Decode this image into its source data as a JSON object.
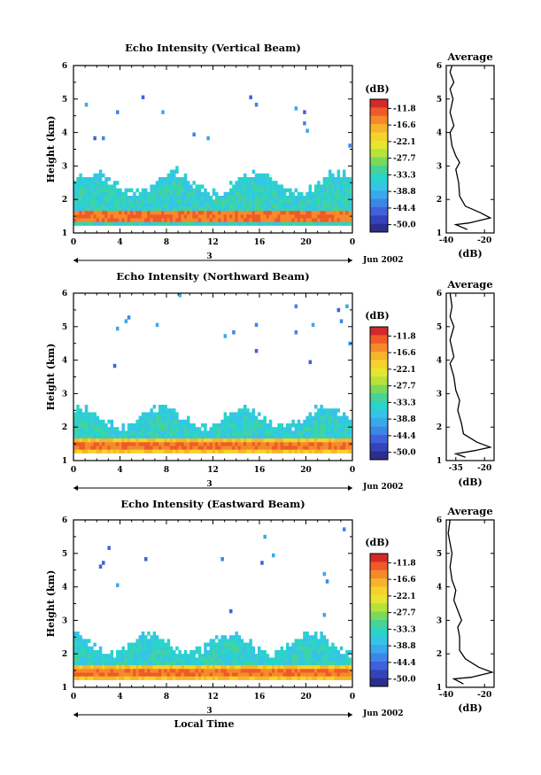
{
  "figure": {
    "date_label": "Jun 2002",
    "xlabel": "Local Time",
    "day_label": "3",
    "average_xlabel": "(dB)",
    "colorbar_label": "(dB)",
    "colorbar_ticks": [
      "-11.8",
      "-16.6",
      "-22.1",
      "-27.7",
      "-33.3",
      "-38.8",
      "-44.4",
      "-50.0"
    ],
    "colors": [
      "#d22a2a",
      "#ef5a28",
      "#f48a2a",
      "#f6b42c",
      "#f5d32c",
      "#e6e630",
      "#b6e23a",
      "#7ad95a",
      "#45d39a",
      "#2ad4c8",
      "#35c4e8",
      "#3aa9ec",
      "#3e86e6",
      "#3f62db",
      "#3444b8",
      "#2b2e8e"
    ]
  },
  "chart_data": [
    {
      "type": "heatmap",
      "title": "Echo Intensity (Vertical Beam)",
      "xlabel": "",
      "ylabel": "Height (km)",
      "xlim": [
        0,
        24
      ],
      "ylim": [
        1,
        6
      ],
      "x_ticks": [
        "0",
        "4",
        "8",
        "12",
        "16",
        "20",
        "0"
      ],
      "y_ticks": [
        "1",
        "2",
        "3",
        "4",
        "5",
        "6"
      ],
      "colorbar_range_db": [
        -50.0,
        -11.8
      ],
      "features": {
        "strong_layer_height_km": 1.5,
        "echo_top_height_km": [
          2.2,
          2.8
        ],
        "sparse_echoes_above_km": 3.5
      },
      "average": {
        "title": "Average",
        "xlim": [
          -40,
          -15
        ],
        "x_ticks": [
          "-40",
          "-20"
        ],
        "y_ticks": [
          "1",
          "2",
          "3",
          "4",
          "5",
          "6"
        ],
        "profile": [
          [
            -29,
            1.1
          ],
          [
            -35,
            1.25
          ],
          [
            -28,
            1.3
          ],
          [
            -17,
            1.45
          ],
          [
            -22,
            1.6
          ],
          [
            -30,
            1.8
          ],
          [
            -33,
            2.1
          ],
          [
            -33.5,
            2.5
          ],
          [
            -35,
            2.9
          ],
          [
            -33,
            3.1
          ],
          [
            -35,
            3.3
          ],
          [
            -37,
            3.6
          ],
          [
            -38,
            4.0
          ],
          [
            -36,
            4.2
          ],
          [
            -38,
            4.6
          ],
          [
            -36.5,
            5.0
          ],
          [
            -38,
            5.3
          ],
          [
            -36,
            5.5
          ],
          [
            -38,
            5.8
          ],
          [
            -37,
            6.0
          ]
        ]
      }
    },
    {
      "type": "heatmap",
      "title": "Echo Intensity (Northward Beam)",
      "xlabel": "",
      "ylabel": "Height (km)",
      "xlim": [
        0,
        24
      ],
      "ylim": [
        1,
        6
      ],
      "x_ticks": [
        "0",
        "4",
        "8",
        "12",
        "16",
        "20",
        "0"
      ],
      "y_ticks": [
        "1",
        "2",
        "3",
        "4",
        "5",
        "6"
      ],
      "colorbar_range_db": [
        -50.0,
        -11.8
      ],
      "features": {
        "strong_layer_height_km": 1.4,
        "echo_top_height_km": [
          2.0,
          2.6
        ],
        "sparse_echoes_above_km": 3.5
      },
      "average": {
        "title": "Average",
        "xlim": [
          -40,
          -15
        ],
        "x_ticks": [
          "-35",
          "-20"
        ],
        "y_ticks": [
          "1",
          "2",
          "3",
          "4",
          "5",
          "6"
        ],
        "profile": [
          [
            -30,
            1.1
          ],
          [
            -35,
            1.2
          ],
          [
            -25,
            1.3
          ],
          [
            -17,
            1.4
          ],
          [
            -24,
            1.55
          ],
          [
            -31,
            1.8
          ],
          [
            -32,
            2.1
          ],
          [
            -34,
            2.5
          ],
          [
            -33,
            2.8
          ],
          [
            -35,
            3.1
          ],
          [
            -36,
            3.5
          ],
          [
            -38,
            3.9
          ],
          [
            -36,
            4.1
          ],
          [
            -38,
            4.6
          ],
          [
            -36,
            5.0
          ],
          [
            -38,
            5.3
          ],
          [
            -37,
            5.6
          ],
          [
            -38,
            6.0
          ]
        ]
      }
    },
    {
      "type": "heatmap",
      "title": "Echo Intensity (Eastward Beam)",
      "xlabel": "Local Time",
      "ylabel": "Height (km)",
      "xlim": [
        0,
        24
      ],
      "ylim": [
        1,
        6
      ],
      "x_ticks": [
        "0",
        "4",
        "8",
        "12",
        "16",
        "20",
        "0"
      ],
      "y_ticks": [
        "1",
        "2",
        "3",
        "4",
        "5",
        "6"
      ],
      "colorbar_range_db": [
        -50.0,
        -11.8
      ],
      "features": {
        "strong_layer_height_km": 1.4,
        "echo_top_height_km": [
          2.0,
          2.6
        ],
        "sparse_echoes_above_km": 3.0
      },
      "average": {
        "title": "Average",
        "xlim": [
          -40,
          -15
        ],
        "x_ticks": [
          "-40",
          "-20"
        ],
        "y_ticks": [
          "1",
          "2",
          "3",
          "4",
          "5",
          "6"
        ],
        "profile": [
          [
            -31,
            1.1
          ],
          [
            -36,
            1.25
          ],
          [
            -27,
            1.3
          ],
          [
            -16,
            1.45
          ],
          [
            -23,
            1.6
          ],
          [
            -30,
            1.85
          ],
          [
            -33,
            2.1
          ],
          [
            -33,
            2.5
          ],
          [
            -34,
            2.8
          ],
          [
            -32,
            3.0
          ],
          [
            -34,
            3.3
          ],
          [
            -36,
            3.6
          ],
          [
            -35,
            3.9
          ],
          [
            -37,
            4.2
          ],
          [
            -38,
            4.6
          ],
          [
            -37,
            5.0
          ],
          [
            -38,
            5.3
          ],
          [
            -39,
            5.6
          ],
          [
            -38,
            6.0
          ]
        ]
      }
    }
  ]
}
